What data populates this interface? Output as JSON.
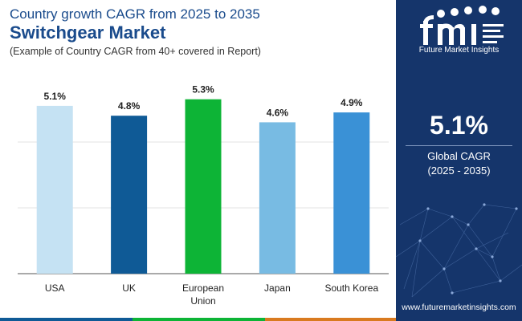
{
  "header": {
    "title_line1": "Country growth CAGR from 2025 to 2035",
    "title_line2": "Switchgear Market",
    "subtitle": "(Example of Country CAGR from 40+ covered in Report)"
  },
  "chart_data": {
    "type": "bar",
    "title": "Country growth CAGR from 2025 to 2035",
    "categories": [
      "USA",
      "UK",
      "European Union",
      "Japan",
      "South Korea"
    ],
    "category_lines": [
      [
        "USA"
      ],
      [
        "UK"
      ],
      [
        "European",
        "Union"
      ],
      [
        "Japan"
      ],
      [
        "South Korea"
      ]
    ],
    "values": [
      5.1,
      4.8,
      5.3,
      4.6,
      4.9
    ],
    "labels": [
      "5.1%",
      "4.8%",
      "5.3%",
      "4.6%",
      "4.9%"
    ],
    "colors": [
      "#c5e2f3",
      "#0f5a96",
      "#0db436",
      "#78bbe3",
      "#3a91d6"
    ],
    "xlabel": "",
    "ylabel": "",
    "ylim": [
      0,
      6
    ],
    "grid": true
  },
  "sidebar": {
    "logo_letters": "fmi",
    "logo_text": "Future Market Insights",
    "cagr_value": "5.1%",
    "cagr_label": "Global CAGR",
    "cagr_period": "(2025 - 2035)",
    "website": "www.futuremarketinsights.com",
    "accent_colors": [
      "#0f5a96",
      "#0db436",
      "#d97a1f",
      "#7b3b8c"
    ]
  }
}
